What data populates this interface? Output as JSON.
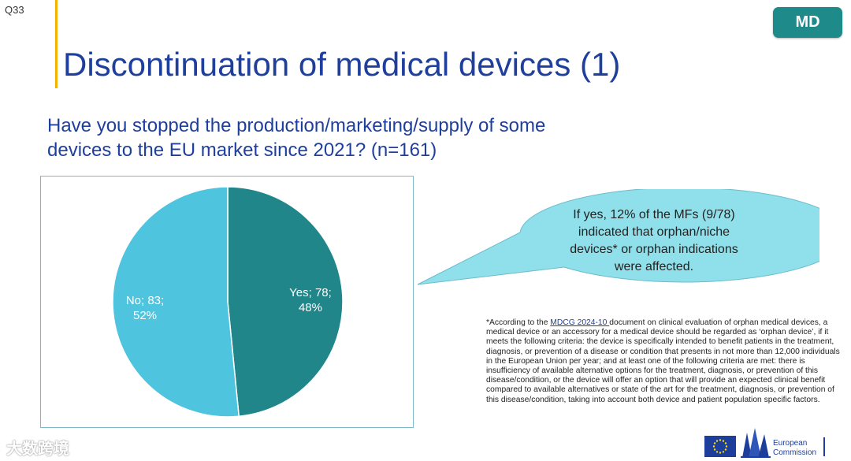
{
  "header": {
    "question_id": "Q33",
    "title": "Discontinuation of medical devices (1)",
    "badge": "MD"
  },
  "question": {
    "line1": "Have you stopped the production/marketing/supply of some",
    "line2": "devices to the EU market since 2021? (n=161)"
  },
  "chart_data": {
    "type": "pie",
    "title": "",
    "slices": [
      {
        "label": "Yes; 78;",
        "pct_label": "48%",
        "value": 78,
        "color": "#20868a"
      },
      {
        "label": "No; 83;",
        "pct_label": "52%",
        "value": 83,
        "color": "#4ec4de"
      }
    ]
  },
  "callout": {
    "line1": "If yes, 12% of the MFs (9/78)",
    "line2": "indicated that orphan/niche",
    "line3": "devices* or orphan indications",
    "line4": "were affected."
  },
  "footnote": {
    "prefix": "*According to the ",
    "link_text": "MDCG 2024-10 ",
    "body": "document on clinical evaluation of orphan medical devices, a medical device or an accessory for a medical device should be regarded as ‘orphan device’, if it meets the following criteria: the device is specifically intended to benefit patients in the treatment, diagnosis, or prevention of a disease or condition that presents in not more than 12,000 individuals in the European Union per year; and at least one of the following criteria are met: there is insufficiency of available alternative options for the treatment, diagnosis, or prevention of this disease/condition, or the device will offer an option that will provide an expected clinical benefit compared to available alternatives or state of the art for the treatment, diagnosis, or prevention of this disease/condition, taking into account both device and patient population specific factors."
  },
  "watermark": "大数跨境",
  "logo": {
    "line1": "European",
    "line2": "Commission"
  }
}
